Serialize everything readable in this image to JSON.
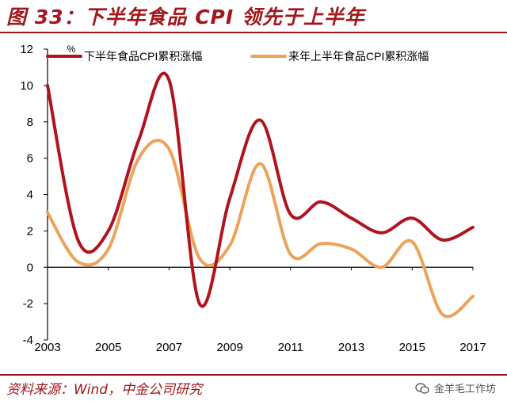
{
  "title": "图 33：下半年食品 CPI 领先于上半年",
  "source": "资料来源：Wind，中金公司研究",
  "watermark": "金羊毛工作坊",
  "colors": {
    "accent": "#a3161b",
    "series1": "#b0141c",
    "series2": "#eca35a",
    "axis": "#000000"
  },
  "chart_data": {
    "type": "line",
    "title": "",
    "xlabel": "",
    "ylabel": "%",
    "xlim": [
      2003,
      2017
    ],
    "ylim": [
      -4,
      12
    ],
    "xticks": [
      2003,
      2005,
      2007,
      2009,
      2011,
      2013,
      2015,
      2017
    ],
    "yticks": [
      -4,
      -2,
      0,
      2,
      4,
      6,
      8,
      10,
      12
    ],
    "legend_position": "top",
    "series": [
      {
        "name": "下半年食品CPI累积涨幅",
        "x": [
          2003,
          2004,
          2005,
          2006,
          2007,
          2008,
          2009,
          2010,
          2011,
          2012,
          2013,
          2014,
          2015,
          2016,
          2017
        ],
        "values": [
          10.0,
          1.5,
          2.0,
          7.0,
          10.3,
          -2.0,
          3.8,
          8.1,
          2.9,
          3.6,
          2.7,
          1.9,
          2.7,
          1.5,
          2.2
        ]
      },
      {
        "name": "来年上半年食品CPI累积涨幅",
        "x": [
          2003,
          2004,
          2005,
          2006,
          2007,
          2008,
          2009,
          2010,
          2011,
          2012,
          2013,
          2014,
          2015,
          2016,
          2017
        ],
        "values": [
          3.0,
          0.3,
          1.0,
          6.0,
          6.5,
          0.5,
          1.2,
          5.7,
          0.7,
          1.3,
          1.0,
          0.0,
          1.4,
          -2.6,
          -1.6
        ]
      }
    ]
  }
}
